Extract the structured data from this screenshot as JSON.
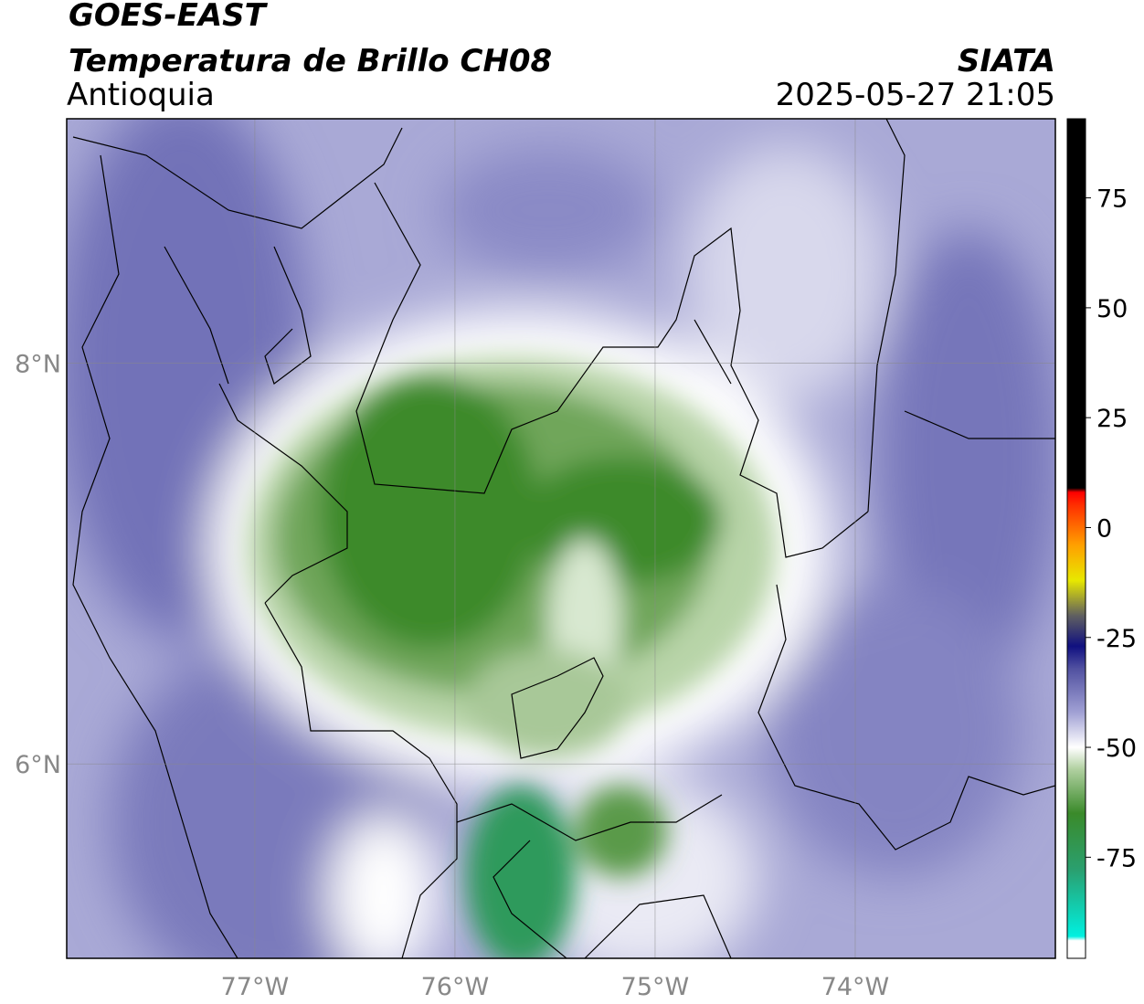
{
  "map": {
    "title": "GOES-EAST",
    "subtitle": "Temperatura de Brillo CH08",
    "region": "Antioquia",
    "source": "SIATA",
    "timestamp": "2025-05-27 21:05",
    "xlim": [
      -77.94,
      -73.0
    ],
    "ylim": [
      5.03,
      9.22
    ],
    "xticks": [
      {
        "value": -77,
        "label": "77°W"
      },
      {
        "value": -76,
        "label": "76°W"
      },
      {
        "value": -75,
        "label": "75°W"
      },
      {
        "value": -74,
        "label": "74°W"
      }
    ],
    "yticks": [
      {
        "value": 8,
        "label": "8°N"
      },
      {
        "value": 6,
        "label": "6°N"
      }
    ],
    "grid": true
  },
  "colorbar": {
    "lim": [
      -98,
      93
    ],
    "ticks": [
      75,
      50,
      25,
      0,
      -25,
      -50,
      -75
    ],
    "colormap": [
      {
        "value": -98,
        "color": "#ffffff"
      },
      {
        "value": -94,
        "color": "#ffffff"
      },
      {
        "value": -93,
        "color": "#00f0e0"
      },
      {
        "value": -78,
        "color": "#2aa070"
      },
      {
        "value": -65,
        "color": "#3a8a2a"
      },
      {
        "value": -55,
        "color": "#b0d0a0"
      },
      {
        "value": -50,
        "color": "#ffffff"
      },
      {
        "value": -42,
        "color": "#a0a0d4"
      },
      {
        "value": -32,
        "color": "#5050a0"
      },
      {
        "value": -27,
        "color": "#101080"
      },
      {
        "value": -20,
        "color": "#606060"
      },
      {
        "value": -12,
        "color": "#e8e800"
      },
      {
        "value": -4,
        "color": "#ffa000"
      },
      {
        "value": 5,
        "color": "#ff3000"
      },
      {
        "value": 8,
        "color": "#ff0000"
      },
      {
        "value": 9,
        "color": "#000000"
      },
      {
        "value": 93,
        "color": "#000000"
      }
    ]
  }
}
